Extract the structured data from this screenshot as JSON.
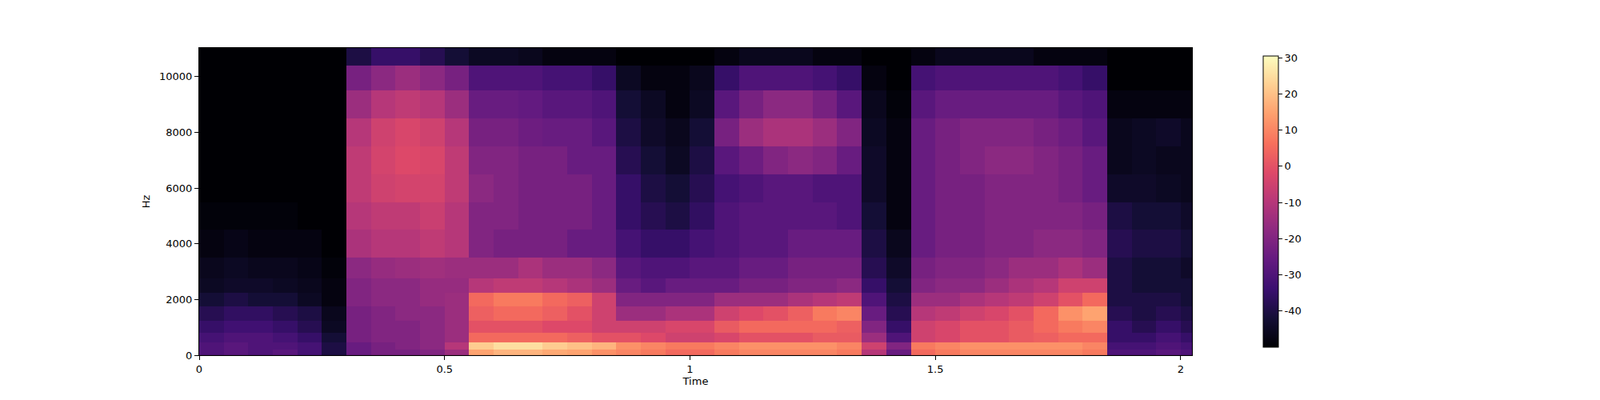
{
  "chart_data": {
    "type": "heatmap",
    "x_label": "Time",
    "y_label": "Hz",
    "xlim": [
      0,
      2.023
    ],
    "xticks": [
      0,
      0.5,
      1,
      1.5,
      2
    ],
    "ylim": [
      0,
      11025
    ],
    "yticks": [
      0,
      2000,
      4000,
      6000,
      8000,
      10000
    ],
    "colorbar_range": [
      -50,
      30.5
    ],
    "colorbar_ticks": [
      -40,
      -30,
      -20,
      -10,
      0,
      10,
      20,
      30
    ],
    "x": [
      0.025,
      0.075,
      0.125,
      0.175,
      0.225,
      0.275,
      0.325,
      0.375,
      0.425,
      0.475,
      0.525,
      0.575,
      0.625,
      0.675,
      0.725,
      0.775,
      0.825,
      0.875,
      0.925,
      0.975,
      1.025,
      1.075,
      1.125,
      1.175,
      1.225,
      1.275,
      1.325,
      1.375,
      1.425,
      1.475,
      1.525,
      1.575,
      1.625,
      1.675,
      1.725,
      1.775,
      1.825,
      1.875,
      1.925,
      1.975,
      2.025
    ],
    "y": [
      100,
      300,
      600,
      1000,
      1500,
      2000,
      2500,
      3000,
      4000,
      5000,
      6000,
      7000,
      8000,
      9000,
      10000,
      10800
    ],
    "z": [
      [
        -30,
        -28,
        -30,
        -28,
        -32,
        -40,
        -25,
        -22,
        -22,
        -20,
        -15,
        15,
        18,
        18,
        16,
        15,
        12,
        10,
        8,
        5,
        5,
        8,
        10,
        10,
        10,
        10,
        8,
        -10,
        -25,
        5,
        8,
        10,
        10,
        10,
        10,
        10,
        8,
        -30,
        -30,
        -28,
        -30
      ],
      [
        -30,
        -28,
        -30,
        -30,
        -32,
        -40,
        -25,
        -22,
        -20,
        -18,
        -10,
        22,
        25,
        25,
        22,
        20,
        18,
        12,
        10,
        8,
        8,
        10,
        12,
        12,
        12,
        12,
        10,
        -5,
        -20,
        8,
        10,
        12,
        12,
        12,
        12,
        12,
        10,
        -32,
        -32,
        -30,
        -32
      ],
      [
        -32,
        -30,
        -30,
        -32,
        -35,
        -42,
        -22,
        -20,
        -20,
        -18,
        -15,
        5,
        5,
        5,
        5,
        3,
        0,
        0,
        -2,
        -5,
        -5,
        -3,
        0,
        0,
        0,
        2,
        2,
        -15,
        -30,
        -5,
        -3,
        0,
        0,
        2,
        3,
        5,
        5,
        -35,
        -35,
        -32,
        -35
      ],
      [
        -35,
        -33,
        -33,
        -35,
        -38,
        -45,
        -22,
        -20,
        -20,
        -18,
        -15,
        0,
        0,
        0,
        -2,
        -2,
        -5,
        -5,
        -5,
        -3,
        -3,
        2,
        5,
        5,
        5,
        5,
        3,
        -20,
        -35,
        -5,
        -3,
        0,
        0,
        2,
        5,
        8,
        10,
        -35,
        -38,
        -35,
        -38
      ],
      [
        -38,
        -36,
        -36,
        -38,
        -40,
        -46,
        -22,
        -20,
        -18,
        -18,
        -15,
        3,
        5,
        5,
        3,
        0,
        -5,
        -15,
        -15,
        -12,
        -12,
        -5,
        -2,
        0,
        3,
        8,
        10,
        -25,
        -38,
        -10,
        -8,
        -5,
        -3,
        0,
        5,
        12,
        15,
        -38,
        -40,
        -38,
        -40
      ],
      [
        -42,
        -40,
        -42,
        -42,
        -45,
        -48,
        -20,
        -18,
        -18,
        -16,
        -15,
        5,
        8,
        8,
        5,
        3,
        -5,
        -20,
        -20,
        -20,
        -20,
        -15,
        -15,
        -15,
        -12,
        -10,
        -8,
        -30,
        -40,
        -15,
        -15,
        -12,
        -10,
        -8,
        -5,
        0,
        5,
        -40,
        -40,
        -40,
        -42
      ],
      [
        -45,
        -44,
        -44,
        -45,
        -46,
        -48,
        -20,
        -18,
        -18,
        -16,
        -16,
        -10,
        -8,
        -8,
        -10,
        -12,
        -15,
        -25,
        -28,
        -25,
        -25,
        -25,
        -22,
        -22,
        -20,
        -20,
        -18,
        -35,
        -42,
        -20,
        -18,
        -18,
        -15,
        -12,
        -10,
        -5,
        -5,
        -40,
        -42,
        -42,
        -42
      ],
      [
        -46,
        -45,
        -46,
        -46,
        -47,
        -49,
        -18,
        -16,
        -15,
        -14,
        -15,
        -15,
        -15,
        -12,
        -15,
        -15,
        -18,
        -28,
        -30,
        -30,
        -28,
        -28,
        -25,
        -25,
        -22,
        -22,
        -22,
        -38,
        -44,
        -22,
        -20,
        -20,
        -18,
        -15,
        -15,
        -12,
        -15,
        -40,
        -42,
        -42,
        -44
      ],
      [
        -48,
        -47,
        -48,
        -48,
        -48,
        -50,
        -12,
        -10,
        -10,
        -8,
        -10,
        -20,
        -22,
        -22,
        -22,
        -25,
        -25,
        -32,
        -35,
        -35,
        -32,
        -30,
        -28,
        -28,
        -25,
        -25,
        -25,
        -40,
        -46,
        -25,
        -22,
        -22,
        -20,
        -20,
        -18,
        -18,
        -20,
        -38,
        -40,
        -40,
        -42
      ],
      [
        -49,
        -49,
        -49,
        -49,
        -50,
        -50,
        -10,
        -8,
        -8,
        -6,
        -10,
        -20,
        -20,
        -22,
        -22,
        -22,
        -25,
        -35,
        -38,
        -40,
        -36,
        -30,
        -28,
        -28,
        -28,
        -28,
        -30,
        -42,
        -48,
        -25,
        -22,
        -22,
        -20,
        -20,
        -20,
        -20,
        -22,
        -40,
        -42,
        -42,
        -44
      ],
      [
        -50,
        -50,
        -50,
        -50,
        -50,
        -50,
        -8,
        -5,
        -4,
        -4,
        -8,
        -18,
        -20,
        -22,
        -22,
        -22,
        -25,
        -35,
        -40,
        -42,
        -38,
        -32,
        -30,
        -28,
        -28,
        -30,
        -30,
        -44,
        -48,
        -25,
        -22,
        -22,
        -20,
        -20,
        -20,
        -22,
        -25,
        -44,
        -44,
        -45,
        -46
      ],
      [
        -50,
        -50,
        -50,
        -50,
        -50,
        -50,
        -8,
        -4,
        -2,
        -3,
        -8,
        -20,
        -20,
        -22,
        -22,
        -25,
        -25,
        -38,
        -42,
        -45,
        -40,
        -28,
        -24,
        -20,
        -18,
        -20,
        -25,
        -44,
        -48,
        -25,
        -22,
        -20,
        -18,
        -18,
        -20,
        -22,
        -25,
        -46,
        -45,
        -46,
        -46
      ],
      [
        -50,
        -50,
        -50,
        -50,
        -50,
        -50,
        -10,
        -5,
        -3,
        -5,
        -10,
        -22,
        -22,
        -24,
        -25,
        -25,
        -28,
        -40,
        -44,
        -46,
        -42,
        -22,
        -15,
        -12,
        -12,
        -15,
        -20,
        -45,
        -48,
        -25,
        -22,
        -20,
        -20,
        -20,
        -22,
        -24,
        -28,
        -46,
        -45,
        -44,
        -46
      ],
      [
        -50,
        -50,
        -50,
        -50,
        -50,
        -50,
        -15,
        -10,
        -8,
        -10,
        -15,
        -25,
        -25,
        -26,
        -28,
        -28,
        -30,
        -42,
        -45,
        -48,
        -45,
        -28,
        -22,
        -18,
        -18,
        -22,
        -28,
        -46,
        -49,
        -28,
        -25,
        -25,
        -25,
        -25,
        -25,
        -28,
        -30,
        -48,
        -48,
        -48,
        -48
      ],
      [
        -50,
        -50,
        -50,
        -50,
        -50,
        -50,
        -22,
        -18,
        -15,
        -18,
        -22,
        -30,
        -30,
        -30,
        -32,
        -32,
        -35,
        -45,
        -48,
        -48,
        -46,
        -35,
        -30,
        -30,
        -30,
        -32,
        -35,
        -48,
        -50,
        -32,
        -30,
        -30,
        -30,
        -30,
        -30,
        -32,
        -35,
        -50,
        -50,
        -50,
        -50
      ],
      [
        -50,
        -50,
        -50,
        -50,
        -50,
        -50,
        -40,
        -35,
        -35,
        -38,
        -42,
        -45,
        -45,
        -46,
        -48,
        -48,
        -48,
        -50,
        -50,
        -50,
        -50,
        -48,
        -46,
        -46,
        -46,
        -48,
        -48,
        -50,
        -50,
        -48,
        -46,
        -46,
        -46,
        -46,
        -48,
        -48,
        -48,
        -50,
        -50,
        -50,
        -50
      ]
    ]
  }
}
